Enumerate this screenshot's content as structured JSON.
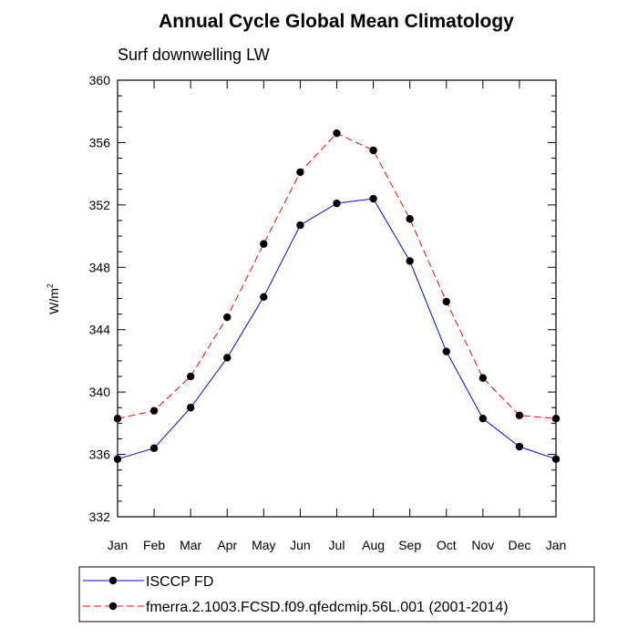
{
  "chart_data": {
    "type": "line",
    "title": "Annual Cycle Global Mean Climatology",
    "subtitle": "Surf downwelling LW",
    "ylabel": "W/m",
    "ylabel_superscript": "2",
    "xlabel": "",
    "categories": [
      "Jan",
      "Feb",
      "Mar",
      "Apr",
      "May",
      "Jun",
      "Jul",
      "Aug",
      "Sep",
      "Oct",
      "Nov",
      "Dec",
      "Jan"
    ],
    "ylim": [
      332,
      360
    ],
    "yticks": [
      332,
      336,
      340,
      344,
      348,
      352,
      356,
      360
    ],
    "ytick_labels": [
      "332",
      "336",
      "340",
      "344",
      "348",
      "352",
      "356",
      "360"
    ],
    "grid": false,
    "legend_position": "bottom",
    "series": [
      {
        "name": "ISCCP FD",
        "color": "#0000ff",
        "line_style": "solid",
        "marker": "filled-circle",
        "values": [
          335.7,
          336.4,
          339.0,
          342.2,
          346.1,
          350.7,
          352.1,
          352.4,
          348.4,
          342.6,
          338.3,
          336.5,
          335.7
        ]
      },
      {
        "name": "fmerra.2.1003.FCSD.f09.qfedcmip.56L.001 (2001-2014)",
        "color": "#ff0000",
        "line_style": "dashed",
        "marker": "filled-circle",
        "values": [
          338.3,
          338.8,
          341.0,
          344.8,
          349.5,
          354.1,
          356.6,
          355.5,
          351.1,
          345.8,
          340.9,
          338.5,
          338.3
        ]
      }
    ]
  }
}
